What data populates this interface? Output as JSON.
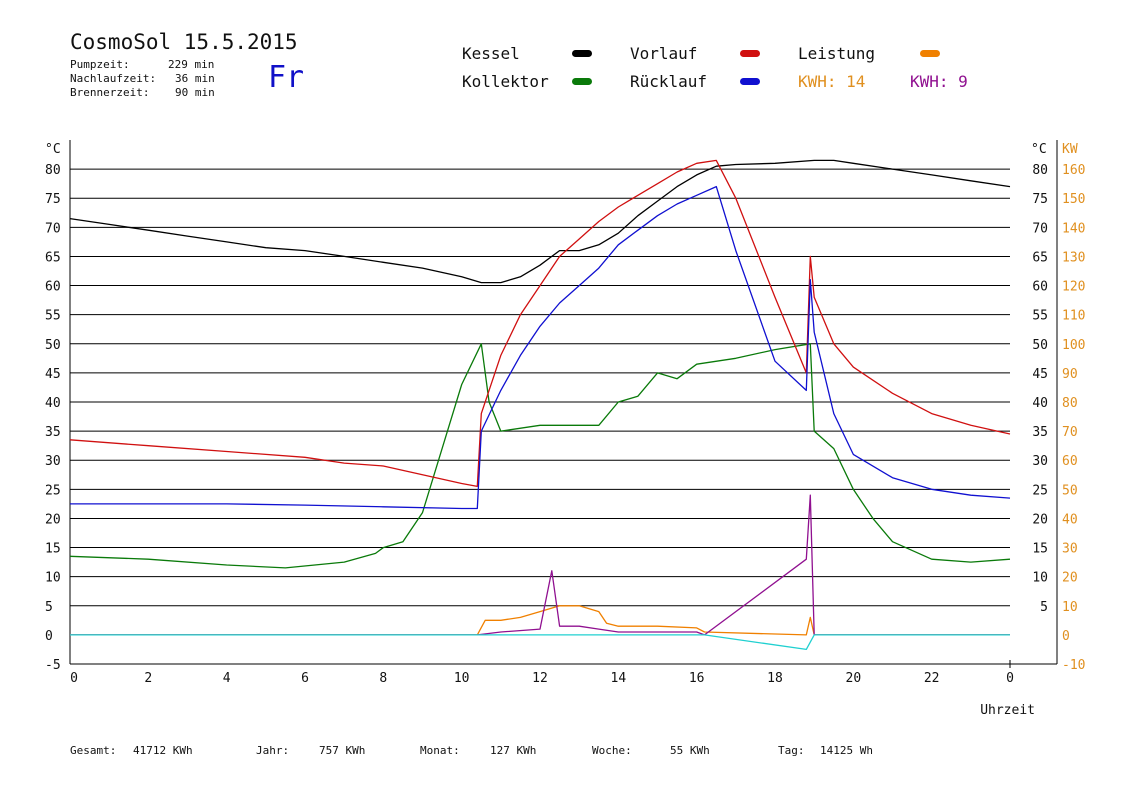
{
  "header": {
    "title": "CosmoSol 15.5.2015",
    "day": "Fr",
    "stats": [
      {
        "label": "Pumpzeit:",
        "value": "229 min"
      },
      {
        "label": "Nachlaufzeit:",
        "value": "36 min"
      },
      {
        "label": "Brennerzeit:",
        "value": "90 min"
      }
    ]
  },
  "legend": {
    "kessel": {
      "label": "Kessel",
      "color": "#000000"
    },
    "kollektor": {
      "label": "Kollektor",
      "color": "#0a7a0a"
    },
    "vorlauf": {
      "label": "Vorlauf",
      "color": "#d01010"
    },
    "ruecklauf": {
      "label": "Rücklauf",
      "color": "#1010d0"
    },
    "leistung": {
      "label": "Leistung",
      "color": "#f08000"
    },
    "kwh1": {
      "label": "KWH: 14",
      "color": "#e09020"
    },
    "kwh2": {
      "label": "KWH: 9",
      "color": "#901090"
    }
  },
  "footer": {
    "gesamt": {
      "label": "Gesamt:",
      "value": "41712 KWh"
    },
    "jahr": {
      "label": "Jahr:",
      "value": "757 KWh"
    },
    "monat": {
      "label": "Monat:",
      "value": "127 KWh"
    },
    "woche": {
      "label": "Woche:",
      "value": "55 KWh"
    },
    "tag": {
      "label": "Tag:",
      "value": "14125 Wh"
    }
  },
  "chart_data": {
    "type": "line",
    "xlabel": "Uhrzeit",
    "ylabel_left": "°C",
    "ylabel_right_temp": "°C",
    "ylabel_right_power": "KW",
    "xlim": [
      0,
      24
    ],
    "ylim": [
      -5,
      85
    ],
    "y2lim": [
      -10,
      170
    ],
    "x_ticks": [
      "0",
      "2",
      "4",
      "6",
      "8",
      "10",
      "12",
      "14",
      "16",
      "18",
      "20",
      "22",
      "0"
    ],
    "y_ticks": [
      -5,
      0,
      5,
      10,
      15,
      20,
      25,
      30,
      35,
      40,
      45,
      50,
      55,
      60,
      65,
      70,
      75,
      80
    ],
    "y_right_temp_ticks": [
      5,
      10,
      15,
      20,
      25,
      30,
      35,
      40,
      45,
      50,
      55,
      60,
      65,
      70,
      75,
      80
    ],
    "y_right_power_ticks": [
      -10,
      0,
      10,
      20,
      30,
      40,
      50,
      60,
      70,
      80,
      90,
      100,
      110,
      120,
      130,
      140,
      150,
      160
    ],
    "grid": "horizontal",
    "series": [
      {
        "name": "Kessel",
        "color": "#000000",
        "x": [
          0,
          1,
          2,
          3,
          4,
          5,
          6,
          7,
          8,
          9,
          10,
          10.5,
          11,
          11.5,
          12,
          12.3,
          12.5,
          13,
          13.5,
          14,
          14.5,
          15,
          15.5,
          16,
          16.5,
          17,
          18,
          19,
          19.5,
          20,
          21,
          22,
          23,
          24
        ],
        "y": [
          71.5,
          70.5,
          69.5,
          68.5,
          67.5,
          66.5,
          66,
          65,
          64,
          63,
          61.5,
          60.5,
          60.5,
          61.5,
          63.5,
          65,
          66,
          66,
          67,
          69,
          72,
          74.5,
          77,
          79,
          80.5,
          80.8,
          81,
          81.5,
          81.5,
          81,
          80,
          79,
          78,
          77
        ]
      },
      {
        "name": "Kollektor",
        "color": "#0a7a0a",
        "x": [
          0,
          2,
          4,
          5.5,
          7,
          7.8,
          8,
          8.5,
          9,
          9.5,
          10,
          10.5,
          10.7,
          11,
          12,
          13,
          13.5,
          14,
          14.5,
          15,
          15.5,
          16,
          17,
          18,
          18.9,
          19,
          19.5,
          20,
          20.5,
          21,
          22,
          23,
          24
        ],
        "y": [
          13.5,
          13,
          12,
          11.5,
          12.5,
          14,
          15,
          16,
          21,
          32,
          43,
          50,
          40,
          35,
          36,
          36,
          36,
          40,
          41,
          45,
          44,
          46.5,
          47.5,
          49,
          50,
          35,
          32,
          25,
          20,
          16,
          13,
          12.5,
          13
        ]
      },
      {
        "name": "Vorlauf",
        "color": "#d01010",
        "x": [
          0,
          2,
          4,
          6,
          7,
          8,
          9,
          10,
          10.4,
          10.5,
          11,
          11.5,
          12,
          12.5,
          13,
          13.5,
          14,
          14.5,
          15,
          15.5,
          16,
          16.5,
          17,
          18,
          18.8,
          18.9,
          19,
          19.5,
          20,
          21,
          22,
          23,
          24
        ],
        "y": [
          33.5,
          32.5,
          31.5,
          30.5,
          29.5,
          29,
          27.5,
          26,
          25.5,
          38,
          48,
          55,
          60,
          65,
          68,
          71,
          73.5,
          75.5,
          77.5,
          79.5,
          81,
          81.5,
          75,
          58,
          45,
          65,
          58,
          50,
          46,
          41.5,
          38,
          36,
          34.5
        ]
      },
      {
        "name": "Rücklauf",
        "color": "#1010d0",
        "x": [
          0,
          2,
          4,
          6,
          8,
          10,
          10.4,
          10.5,
          11,
          11.5,
          12,
          12.5,
          13,
          13.5,
          14,
          14.5,
          15,
          15.5,
          16,
          16.5,
          17,
          18,
          18.8,
          18.9,
          19,
          19.5,
          20,
          21,
          22,
          23,
          24
        ],
        "y": [
          22.5,
          22.5,
          22.5,
          22.3,
          22,
          21.7,
          21.7,
          35,
          42,
          48,
          53,
          57,
          60,
          63,
          67,
          69.5,
          72,
          74,
          75.5,
          77,
          66,
          47,
          42,
          61,
          52,
          38,
          31,
          27,
          25,
          24,
          23.5
        ]
      },
      {
        "name": "Leistung",
        "color": "#f08000",
        "x": [
          0,
          10.4,
          10.6,
          11,
          11.5,
          12,
          12.5,
          13,
          13.5,
          13.7,
          14,
          15,
          16,
          16.2,
          18.8,
          18.9,
          19,
          24
        ],
        "y": [
          0,
          0,
          2.5,
          2.5,
          3,
          4,
          5,
          5,
          4,
          2,
          1.5,
          1.5,
          1.2,
          0.5,
          0,
          3,
          0,
          0
        ]
      },
      {
        "name": "KWH",
        "color": "#901090",
        "x": [
          0,
          10.4,
          11,
          12,
          12.3,
          12.5,
          13,
          13.5,
          14,
          15,
          16,
          16.2,
          18.8,
          18.9,
          19,
          24
        ],
        "y": [
          0,
          0,
          0.5,
          1,
          11,
          1.5,
          1.5,
          1,
          0.5,
          0.5,
          0.5,
          0,
          13,
          24,
          0,
          0
        ]
      },
      {
        "name": "Pumpe",
        "color": "#20d0d0",
        "x": [
          0,
          16.2,
          18.8,
          19,
          24
        ],
        "y": [
          0,
          0,
          -2.5,
          0,
          0
        ]
      }
    ]
  }
}
